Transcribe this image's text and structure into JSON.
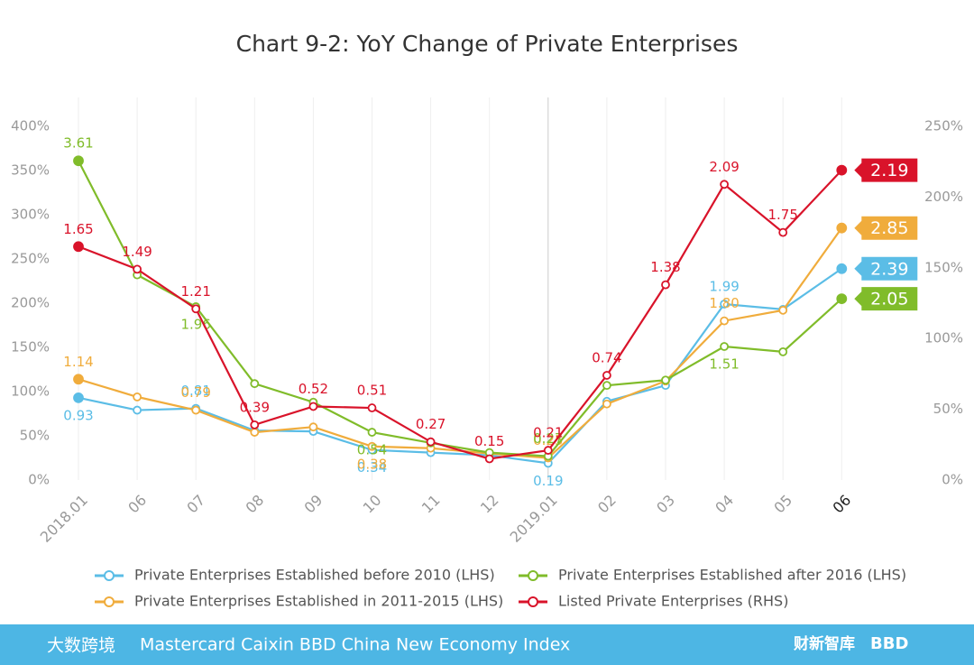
{
  "chart_data": {
    "type": "line",
    "title": "Chart 9-2: YoY Change of Private Enterprises",
    "categories": [
      "2018.01",
      "06",
      "07",
      "08",
      "09",
      "10",
      "11",
      "12",
      "2019.01",
      "02",
      "03",
      "04",
      "05",
      "06"
    ],
    "ylim": [
      0,
      400
    ],
    "yticks": [
      {
        "value": 0,
        "label": "0%"
      },
      {
        "value": 50,
        "label": "50%"
      },
      {
        "value": 100,
        "label": "100%"
      },
      {
        "value": 150,
        "label": "150%"
      },
      {
        "value": 200,
        "label": "200%"
      },
      {
        "value": 250,
        "label": "250%"
      },
      {
        "value": 300,
        "label": "300%"
      },
      {
        "value": 350,
        "label": "350%"
      },
      {
        "value": 400,
        "label": "400%"
      }
    ],
    "y2lim": [
      0,
      250
    ],
    "y2ticks": [
      {
        "value": 0,
        "label": "0%"
      },
      {
        "value": 50,
        "label": "50%"
      },
      {
        "value": 100,
        "label": "100%"
      },
      {
        "value": 150,
        "label": "150%"
      },
      {
        "value": 200,
        "label": "200%"
      },
      {
        "value": 250,
        "label": "250%"
      }
    ],
    "grid": true,
    "series": [
      {
        "name": "Private Enterprises Established before 2010 (LHS)",
        "color": "#5bbde6",
        "values": [
          93,
          79,
          81,
          56,
          55,
          34,
          31,
          28,
          19,
          89,
          107,
          199,
          193,
          239
        ],
        "value_labels": [
          "0.93",
          null,
          "0.81",
          null,
          null,
          "0.34",
          null,
          null,
          "0.19",
          null,
          null,
          "1.99",
          null,
          "2.39"
        ]
      },
      {
        "name": "Private Enterprises Established in 2011-2015 (LHS)",
        "color": "#f0ac3c",
        "values": [
          114,
          94,
          79,
          54,
          60,
          38,
          36,
          30,
          25,
          86,
          112,
          180,
          192,
          285
        ],
        "value_labels": [
          "1.14",
          null,
          "0.79",
          null,
          null,
          "0.38",
          null,
          null,
          "0.25",
          null,
          null,
          "1.80",
          null,
          "2.85"
        ]
      },
      {
        "name": "Private Enterprises Established after 2016 (LHS)",
        "color": "#80bc2a",
        "values": [
          361,
          232,
          196,
          109,
          88,
          54,
          42,
          31,
          27,
          107,
          113,
          151,
          145,
          205
        ],
        "value_labels": [
          "3.61",
          null,
          "1.96",
          null,
          null,
          "0.54",
          null,
          null,
          "0.27",
          null,
          null,
          "1.51",
          null,
          "2.05"
        ]
      },
      {
        "name": "Listed Private Enterprises (RHS)",
        "color": "#d9132a",
        "axis": "y2",
        "values": [
          165,
          149,
          121,
          39,
          52,
          51,
          27,
          15,
          21,
          74,
          138,
          209,
          175,
          219
        ],
        "value_labels": [
          "1.65",
          "1.49",
          "1.21",
          "0.39",
          "0.52",
          "0.51",
          "0.27",
          "0.15",
          "0.21",
          "0.74",
          "1.38",
          "2.09",
          "1.75",
          "2.19"
        ]
      }
    ]
  },
  "footer": {
    "title": "Mastercard Caixin BBD China New Economy Index",
    "logo_left": "大数跨境",
    "logo_right": [
      "财新智库",
      "BBD"
    ]
  }
}
